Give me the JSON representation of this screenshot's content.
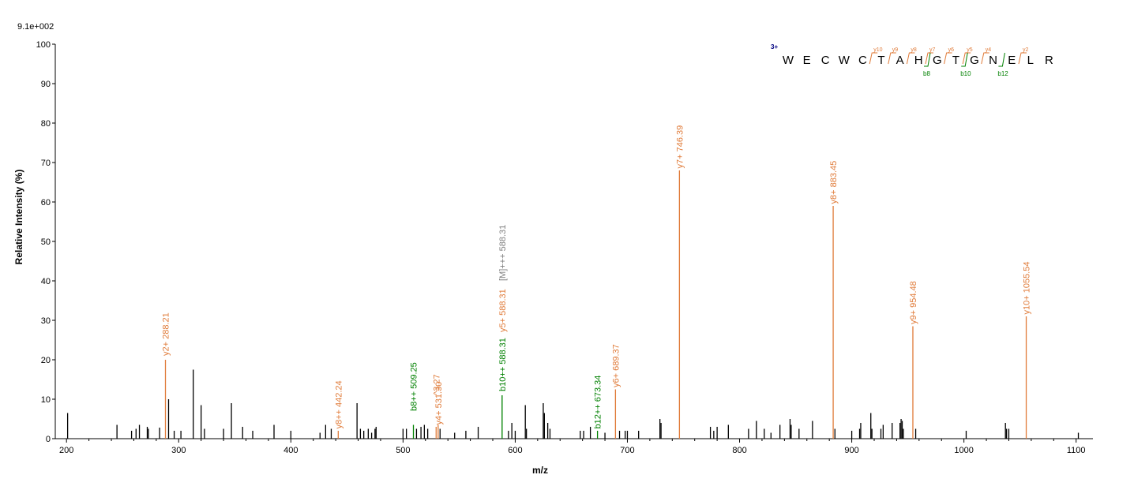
{
  "chart_data": {
    "type": "bar",
    "scale_label": "9.1e+002",
    "xlabel": "m/z",
    "ylabel": "Relative   Intensity (%)",
    "xlim": [
      190,
      1115
    ],
    "ylim": [
      0,
      100
    ],
    "x_ticks": [
      200,
      300,
      400,
      500,
      600,
      700,
      800,
      900,
      1000,
      1100
    ],
    "y_ticks": [
      0,
      10,
      20,
      30,
      40,
      50,
      60,
      70,
      80,
      90,
      100
    ],
    "colors": {
      "y_ion": "#e07b39",
      "b_ion": "#008000",
      "precursor": "#808080",
      "unmatched": "#000000"
    },
    "peaks": [
      [
        201,
        6.5
      ],
      [
        245,
        3.5
      ],
      [
        258,
        2
      ],
      [
        262,
        2.5
      ],
      [
        265,
        3.5
      ],
      [
        272,
        3
      ],
      [
        273,
        2.5
      ],
      [
        283,
        2.8
      ],
      [
        291,
        10
      ],
      [
        296,
        2
      ],
      [
        302,
        2
      ],
      [
        313,
        17.5
      ],
      [
        320,
        8.5
      ],
      [
        323,
        2.5
      ],
      [
        340,
        2.5
      ],
      [
        347,
        9
      ],
      [
        357,
        3
      ],
      [
        366,
        2
      ],
      [
        385,
        3.5
      ],
      [
        400,
        2
      ],
      [
        426,
        1.5
      ],
      [
        431,
        3.5
      ],
      [
        436,
        2.5
      ],
      [
        459,
        9
      ],
      [
        462,
        2.5
      ],
      [
        465,
        2
      ],
      [
        469,
        2.5
      ],
      [
        472,
        1.5
      ],
      [
        475,
        2.5
      ],
      [
        476,
        3
      ],
      [
        500,
        2.5
      ],
      [
        503,
        2.5
      ],
      [
        512,
        2.5
      ],
      [
        516,
        3
      ],
      [
        519,
        3.5
      ],
      [
        522,
        2.5
      ],
      [
        533,
        2.5
      ],
      [
        546,
        1.5
      ],
      [
        556,
        2
      ],
      [
        567,
        3
      ],
      [
        594,
        2
      ],
      [
        597,
        4
      ],
      [
        600,
        2
      ],
      [
        609,
        8.5
      ],
      [
        610,
        2.5
      ],
      [
        625,
        9
      ],
      [
        626,
        6.5
      ],
      [
        629,
        4
      ],
      [
        631,
        2.5
      ],
      [
        658,
        2
      ],
      [
        661,
        2
      ],
      [
        667,
        3
      ],
      [
        680,
        1.5
      ],
      [
        693,
        2
      ],
      [
        698,
        2
      ],
      [
        700,
        2
      ],
      [
        710,
        2
      ],
      [
        729,
        5
      ],
      [
        730,
        4
      ],
      [
        774,
        3
      ],
      [
        777,
        2
      ],
      [
        780,
        3
      ],
      [
        790,
        3.5
      ],
      [
        808,
        2.5
      ],
      [
        815,
        4.5
      ],
      [
        822,
        2.5
      ],
      [
        828,
        1.5
      ],
      [
        836,
        3.5
      ],
      [
        845,
        5
      ],
      [
        846,
        3.5
      ],
      [
        853,
        2.5
      ],
      [
        865,
        4.5
      ],
      [
        885,
        2.5
      ],
      [
        900,
        2
      ],
      [
        907,
        2.5
      ],
      [
        908,
        4
      ],
      [
        917,
        6.5
      ],
      [
        918,
        2.5
      ],
      [
        926,
        2.5
      ],
      [
        928,
        3.5
      ],
      [
        936,
        4
      ],
      [
        943,
        4
      ],
      [
        944,
        5
      ],
      [
        945,
        4.5
      ],
      [
        946,
        2.5
      ],
      [
        957,
        2.5
      ],
      [
        1002,
        2
      ],
      [
        1037,
        4
      ],
      [
        1038,
        2.5
      ],
      [
        1040,
        2.5
      ],
      [
        1102,
        1.5
      ]
    ],
    "annotated_peaks": [
      {
        "mz": 288.21,
        "intensity": 20,
        "label": "y2+ 288.21",
        "ion": "y_ion",
        "label_base": 21
      },
      {
        "mz": 442.24,
        "intensity": 2,
        "label": "y8++ 442.24",
        "ion": "y_ion",
        "label_base": 2.5
      },
      {
        "mz": 509.25,
        "intensity": 3.5,
        "label": "b8++ 509.25",
        "ion": "b_ion",
        "label_base": 7
      },
      {
        "mz": 531.3,
        "intensity": 3.5,
        "label": "y4+ 531.30",
        "ion": "y_ion",
        "label_base": 3.5
      },
      {
        "mz": 529.5,
        "intensity": 3,
        "label": "^3.27",
        "ion": "y_ion",
        "label_base": 11
      },
      {
        "mz": 588.31,
        "intensity": 11,
        "label": "b10++ 588.31",
        "ion": "b_ion",
        "label_base": 12
      },
      {
        "mz": 588.31,
        "intensity": 11,
        "label": "y5+ 588.31",
        "ion": "y_ion",
        "label_base": 27
      },
      {
        "mz": 588.31,
        "intensity": 11,
        "label": "[M]+++ 588.31",
        "ion": "precursor",
        "label_base": 40
      },
      {
        "mz": 673.34,
        "intensity": 2,
        "label": "b12++ 673.34",
        "ion": "b_ion",
        "label_base": 2.5
      },
      {
        "mz": 689.37,
        "intensity": 12.5,
        "label": "y6+ 689.37",
        "ion": "y_ion",
        "label_base": 13
      },
      {
        "mz": 746.39,
        "intensity": 68,
        "label": "y7+ 746.39",
        "ion": "y_ion",
        "label_base": 68.5
      },
      {
        "mz": 883.45,
        "intensity": 59,
        "label": "y8+ 883.45",
        "ion": "y_ion",
        "label_base": 59.5
      },
      {
        "mz": 954.48,
        "intensity": 28.5,
        "label": "y9+ 954.48",
        "ion": "y_ion",
        "label_base": 29
      },
      {
        "mz": 1055.54,
        "intensity": 31,
        "label": "y10+ 1055.54",
        "ion": "y_ion",
        "label_base": 31.5
      }
    ],
    "peptide": {
      "charge": "3+",
      "residues": [
        "W",
        "E",
        "C",
        "W",
        "C",
        "T",
        "A",
        "H",
        "G",
        "T",
        "G",
        "N",
        "E",
        "L",
        "R"
      ],
      "y_marks": [
        {
          "after": 5,
          "label": "y10"
        },
        {
          "after": 6,
          "label": "y9"
        },
        {
          "after": 7,
          "label": "y8"
        },
        {
          "after": 8,
          "label": "y7"
        },
        {
          "after": 9,
          "label": "y6"
        },
        {
          "after": 10,
          "label": "y5"
        },
        {
          "after": 11,
          "label": "y4"
        },
        {
          "after": 13,
          "label": "y2"
        }
      ],
      "b_marks": [
        {
          "after": 8,
          "label": "b8"
        },
        {
          "after": 10,
          "label": "b10"
        },
        {
          "after": 12,
          "label": "b12"
        }
      ]
    }
  }
}
